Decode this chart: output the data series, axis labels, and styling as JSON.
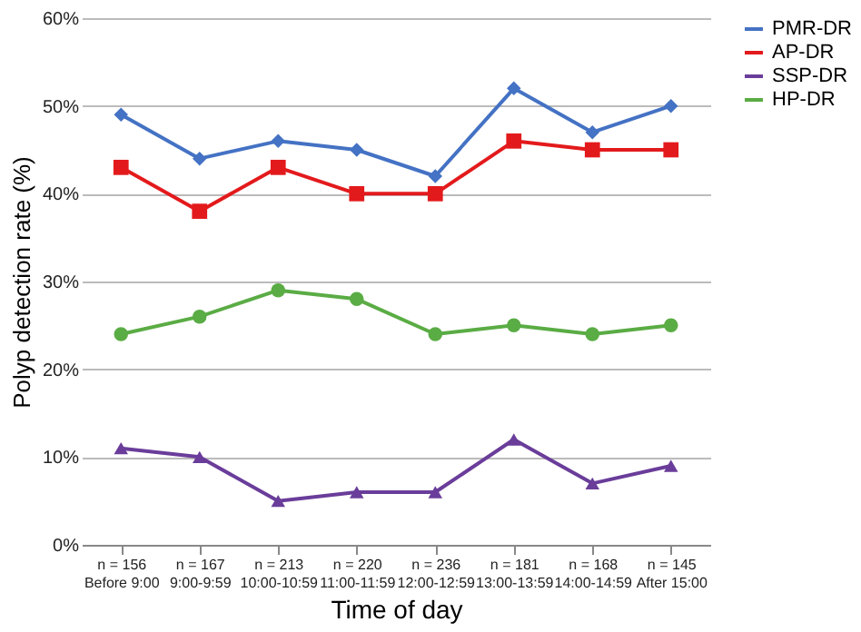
{
  "chart_data": {
    "type": "line",
    "xlabel": "Time of day",
    "ylabel": "Polyp detection rate (%)",
    "categories": [
      "n = 156\nBefore 9:00",
      "n = 167\n9:00-9:59",
      "n = 213\n10:00-10:59",
      "n = 220\n11:00-11:59",
      "n = 236\n12:00-12:59",
      "n = 181\n13:00-13:59",
      "n = 168\n14:00-14:59",
      "n = 145\nAfter 15:00"
    ],
    "series": [
      {
        "name": "PMR-DR",
        "color": "#4472c4",
        "marker": "diamond",
        "values": [
          49,
          44,
          46,
          45,
          42,
          52,
          47,
          50
        ]
      },
      {
        "name": "AP-DR",
        "color": "#e31a1c",
        "marker": "square",
        "values": [
          43,
          38,
          43,
          40,
          40,
          46,
          45,
          45
        ]
      },
      {
        "name": "SSP-DR",
        "color": "#6a3d9a",
        "marker": "triangle",
        "values": [
          11,
          10,
          5,
          6,
          6,
          12,
          7,
          9
        ]
      },
      {
        "name": "HP-DR",
        "color": "#5aac44",
        "marker": "circle",
        "values": [
          24,
          26,
          29,
          28,
          24,
          25,
          24,
          25
        ]
      }
    ],
    "ylim": [
      0,
      60
    ],
    "yticks": [
      {
        "value": 0,
        "label": "0%"
      },
      {
        "value": 10,
        "label": "10%"
      },
      {
        "value": 20,
        "label": "20%"
      },
      {
        "value": 30,
        "label": "30%"
      },
      {
        "value": 40,
        "label": "40%"
      },
      {
        "value": 50,
        "label": "50%"
      },
      {
        "value": 60,
        "label": "60%"
      }
    ],
    "grid": "y",
    "legend": "right",
    "line_style": "solid"
  }
}
